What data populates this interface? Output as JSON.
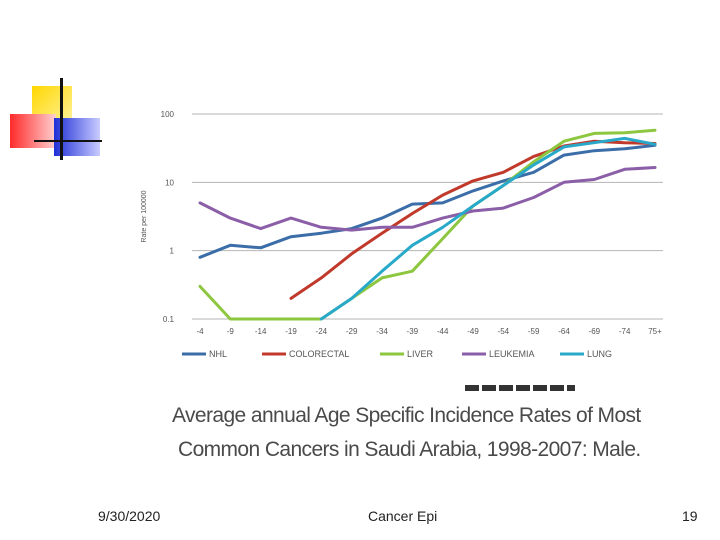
{
  "chart_data": {
    "type": "line",
    "yscale": "log",
    "ylabel": "Rate per 100000",
    "ylim": [
      0.1,
      100
    ],
    "yticks": [
      "100",
      "10",
      "1",
      "0.1"
    ],
    "grid": true,
    "legend": "bottom",
    "categories": [
      "-4",
      "-9",
      "-14",
      "-19",
      "-24",
      "-29",
      "-34",
      "-39",
      "-44",
      "-49",
      "-54",
      "-59",
      "-64",
      "-69",
      "-74",
      "75+"
    ],
    "series": [
      {
        "name": "NHL",
        "color": "#3b6ea8",
        "values": [
          0.8,
          1.2,
          1.1,
          1.6,
          1.8,
          2.1,
          3.0,
          4.8,
          5.0,
          7.5,
          10.5,
          14.0,
          25.0,
          29.0,
          31.0,
          35.0
        ]
      },
      {
        "name": "COLORECTAL",
        "color": "#c0392b",
        "values": [
          null,
          null,
          null,
          0.2,
          0.4,
          0.9,
          1.8,
          3.5,
          6.5,
          10.5,
          14.0,
          24.0,
          34.0,
          40.0,
          38.0,
          37.0
        ]
      },
      {
        "name": "LIVER",
        "color": "#8dc63f",
        "values": [
          0.3,
          0.1,
          0.1,
          0.1,
          0.1,
          0.2,
          0.4,
          0.5,
          1.5,
          4.5,
          9.0,
          20.0,
          40.0,
          52.0,
          53.0,
          58.0
        ]
      },
      {
        "name": "LEUKEMIA",
        "color": "#8b5ea8",
        "values": [
          5.0,
          3.0,
          2.1,
          3.0,
          2.2,
          2.0,
          2.2,
          2.2,
          3.0,
          3.8,
          4.2,
          6.0,
          10.0,
          11.0,
          15.5,
          16.5
        ]
      },
      {
        "name": "LUNG",
        "color": "#29a9c9",
        "values": [
          null,
          null,
          null,
          null,
          0.1,
          0.2,
          0.5,
          1.2,
          2.2,
          4.5,
          9.0,
          18.0,
          33.0,
          38.0,
          44.0,
          36.0
        ]
      }
    ]
  },
  "caption": {
    "line1": "Average annual Age Specific Incidence Rates of Most",
    "line2": "Common Cancers in Saudi Arabia, 1998-2007: Male."
  },
  "footer": {
    "date": "9/30/2020",
    "title": "Cancer Epi",
    "page": "19"
  }
}
